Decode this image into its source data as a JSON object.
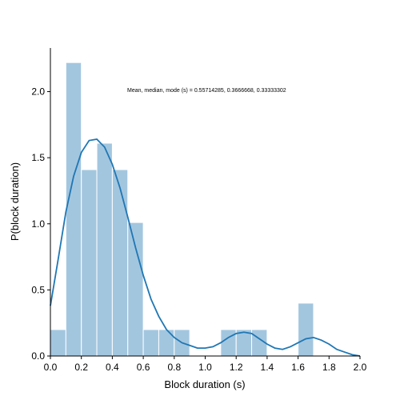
{
  "chart_data": {
    "type": "histogram",
    "xlabel": "Block duration (s)",
    "ylabel": "P(block duration)",
    "xlim": [
      0.0,
      2.0
    ],
    "ylim": [
      0.0,
      2.33
    ],
    "xticks": [
      "0.0",
      "0.2",
      "0.4",
      "0.6",
      "0.8",
      "1.0",
      "1.2",
      "1.4",
      "1.6",
      "1.8",
      "2.0"
    ],
    "yticks": [
      "0.0",
      "0.5",
      "1.0",
      "1.5",
      "2.0"
    ],
    "annotation": "Mean, median, mode (s) = 0.55714285, 0.3666668, 0.33333302",
    "bar_color": "#a3c6df",
    "bar_edge_color": "#ffffff",
    "line_color": "#1f77b4",
    "grid": false,
    "bins": [
      {
        "x0": 0.0,
        "x1": 0.1,
        "density": 0.2
      },
      {
        "x0": 0.1,
        "x1": 0.2,
        "density": 2.22
      },
      {
        "x0": 0.2,
        "x1": 0.3,
        "density": 1.41
      },
      {
        "x0": 0.3,
        "x1": 0.4,
        "density": 1.61
      },
      {
        "x0": 0.4,
        "x1": 0.5,
        "density": 1.41
      },
      {
        "x0": 0.5,
        "x1": 0.6,
        "density": 1.01
      },
      {
        "x0": 0.6,
        "x1": 0.7,
        "density": 0.2
      },
      {
        "x0": 0.7,
        "x1": 0.8,
        "density": 0.2
      },
      {
        "x0": 0.8,
        "x1": 0.9,
        "density": 0.2
      },
      {
        "x0": 1.1,
        "x1": 1.2,
        "density": 0.2
      },
      {
        "x0": 1.2,
        "x1": 1.3,
        "density": 0.2
      },
      {
        "x0": 1.3,
        "x1": 1.4,
        "density": 0.2
      },
      {
        "x0": 1.6,
        "x1": 1.7,
        "density": 0.4
      }
    ],
    "kde": {
      "x": [
        0.0,
        0.05,
        0.1,
        0.15,
        0.2,
        0.25,
        0.3,
        0.35,
        0.4,
        0.45,
        0.5,
        0.55,
        0.6,
        0.65,
        0.7,
        0.75,
        0.8,
        0.85,
        0.9,
        0.95,
        1.0,
        1.05,
        1.1,
        1.15,
        1.2,
        1.25,
        1.3,
        1.35,
        1.4,
        1.45,
        1.5,
        1.55,
        1.6,
        1.65,
        1.7,
        1.75,
        1.8,
        1.85,
        1.9,
        1.95,
        2.0
      ],
      "y": [
        0.38,
        0.73,
        1.09,
        1.36,
        1.54,
        1.63,
        1.64,
        1.58,
        1.45,
        1.27,
        1.05,
        0.82,
        0.61,
        0.43,
        0.3,
        0.2,
        0.14,
        0.1,
        0.08,
        0.06,
        0.06,
        0.07,
        0.1,
        0.14,
        0.17,
        0.18,
        0.17,
        0.13,
        0.09,
        0.06,
        0.05,
        0.07,
        0.1,
        0.13,
        0.14,
        0.12,
        0.09,
        0.05,
        0.03,
        0.01,
        0.0
      ]
    }
  }
}
